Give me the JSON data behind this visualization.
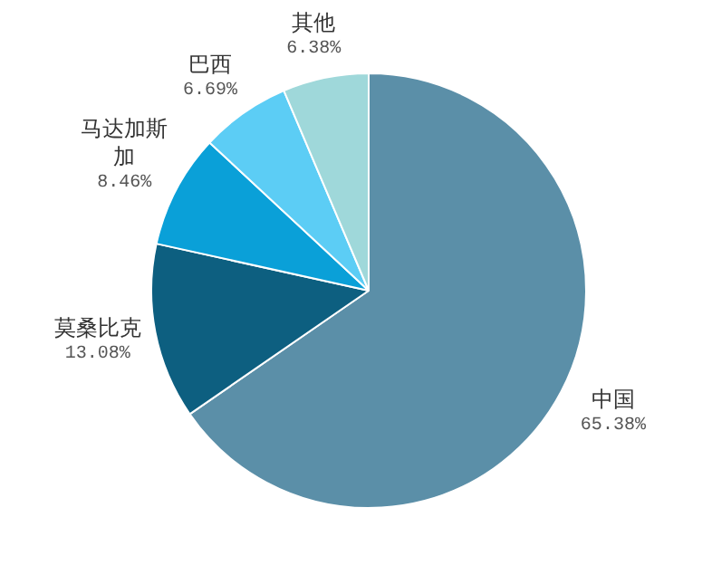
{
  "chart_data": {
    "type": "pie",
    "categories": [
      "中国",
      "莫桑比克",
      "马达加斯加",
      "巴西",
      "其他"
    ],
    "values": [
      65.38,
      13.08,
      8.46,
      6.69,
      6.38
    ],
    "value_labels": [
      "65.38%",
      "13.08%",
      "8.46%",
      "6.69%",
      "6.38%"
    ],
    "colors": [
      "#5b8fa8",
      "#0d5f80",
      "#0aa0d8",
      "#5ccdf5",
      "#9fd8da"
    ]
  }
}
